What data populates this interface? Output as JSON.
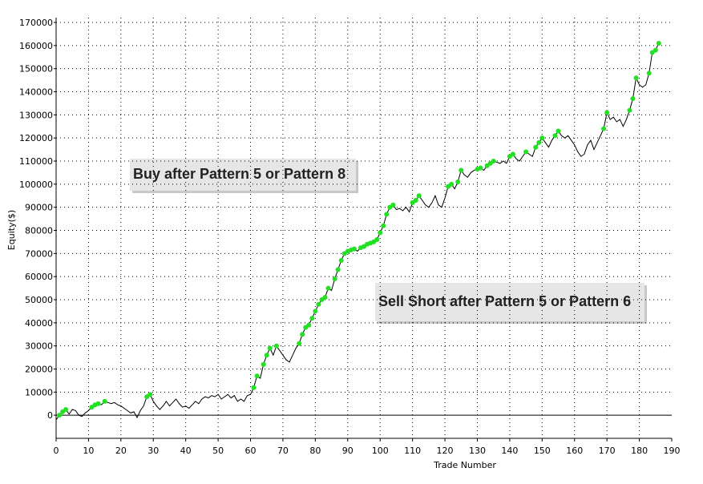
{
  "chart_data": {
    "type": "line",
    "x_label": "Trade Number",
    "y_label": "Equity($)",
    "annotations": [
      "Buy after Pattern 5 or Pattern 8",
      "Sell Short after Pattern 5 or Pattern 6"
    ],
    "x": [
      0,
      1,
      2,
      3,
      4,
      5,
      6,
      7,
      8,
      9,
      10,
      11,
      12,
      13,
      14,
      15,
      16,
      17,
      18,
      19,
      20,
      21,
      22,
      23,
      24,
      25,
      26,
      27,
      28,
      29,
      30,
      31,
      32,
      33,
      34,
      35,
      36,
      37,
      38,
      39,
      40,
      41,
      42,
      43,
      44,
      45,
      46,
      47,
      48,
      49,
      50,
      51,
      52,
      53,
      54,
      55,
      56,
      57,
      58,
      59,
      60,
      61,
      62,
      63,
      64,
      65,
      66,
      67,
      68,
      69,
      70,
      71,
      72,
      73,
      74,
      75,
      76,
      77,
      78,
      79,
      80,
      81,
      82,
      83,
      84,
      85,
      86,
      87,
      88,
      89,
      90,
      91,
      92,
      93,
      94,
      95,
      96,
      97,
      98,
      99,
      100,
      101,
      102,
      103,
      104,
      105,
      106,
      107,
      108,
      109,
      110,
      111,
      112,
      113,
      114,
      115,
      116,
      117,
      118,
      119,
      120,
      121,
      122,
      123,
      124,
      125,
      126,
      127,
      128,
      129,
      130,
      131,
      132,
      133,
      134,
      135,
      136,
      137,
      138,
      139,
      140,
      141,
      142,
      143,
      144,
      145,
      146,
      147,
      148,
      149,
      150,
      151,
      152,
      153,
      154,
      155,
      156,
      157,
      158,
      159,
      160,
      161,
      162,
      163,
      164,
      165,
      166,
      167,
      168,
      169,
      170,
      171,
      172,
      173,
      174,
      175,
      176,
      177,
      178,
      179,
      180,
      181,
      182,
      183,
      184,
      185,
      186
    ],
    "series": [
      {
        "color": "#000000",
        "marker_color": "#22e022",
        "values": [
          -2000,
          0,
          1500,
          2500,
          500,
          2500,
          2000,
          0,
          -500,
          1000,
          2000,
          3500,
          4500,
          5000,
          4500,
          6000,
          5500,
          5000,
          5500,
          4500,
          4000,
          3000,
          2000,
          1000,
          1500,
          -1000,
          2000,
          4000,
          8000,
          9000,
          6000,
          4000,
          2500,
          4000,
          6000,
          4000,
          5500,
          7000,
          5000,
          3500,
          4000,
          3000,
          4500,
          6000,
          5000,
          7000,
          8000,
          7500,
          8500,
          8000,
          9000,
          7000,
          8000,
          9000,
          7500,
          8500,
          6000,
          7000,
          6000,
          8500,
          9000,
          12000,
          17000,
          16000,
          22000,
          26000,
          29000,
          26000,
          30000,
          28000,
          26000,
          24000,
          23000,
          26000,
          29000,
          31000,
          35000,
          38000,
          39000,
          42000,
          45000,
          48000,
          50000,
          51000,
          55000,
          54000,
          59000,
          63000,
          67000,
          70000,
          71000,
          71500,
          72000,
          71000,
          72500,
          73000,
          74000,
          74500,
          75000,
          76000,
          79000,
          82000,
          87000,
          90000,
          91000,
          89000,
          89500,
          88500,
          90000,
          88000,
          92000,
          93000,
          95000,
          93000,
          91000,
          90000,
          92000,
          95000,
          91000,
          90000,
          94000,
          99000,
          100000,
          98000,
          101000,
          106000,
          104000,
          103000,
          105000,
          106000,
          106500,
          107000,
          106000,
          108000,
          109000,
          110000,
          109500,
          109000,
          110000,
          109000,
          112000,
          113000,
          111000,
          110000,
          112000,
          114000,
          113000,
          112000,
          116000,
          118000,
          120000,
          118000,
          116000,
          119000,
          121000,
          123000,
          121000,
          120000,
          121000,
          119000,
          117000,
          114000,
          112000,
          113000,
          117000,
          119000,
          115000,
          118000,
          121000,
          124000,
          131000,
          128000,
          129000,
          127000,
          128000,
          125000,
          128000,
          132000,
          137000,
          146000,
          143000,
          142000,
          143000,
          148000,
          157000,
          158000,
          161000
        ]
      }
    ],
    "xlim": [
      0,
      190
    ],
    "xticks": [
      0,
      10,
      20,
      30,
      40,
      50,
      60,
      70,
      80,
      90,
      100,
      110,
      120,
      130,
      140,
      150,
      160,
      170,
      180,
      190
    ],
    "ylim": [
      -10000,
      170000
    ],
    "yticks": [
      0,
      10000,
      20000,
      30000,
      40000,
      50000,
      60000,
      70000,
      80000,
      90000,
      100000,
      110000,
      120000,
      130000,
      140000,
      150000,
      160000,
      170000
    ],
    "grid": true
  }
}
